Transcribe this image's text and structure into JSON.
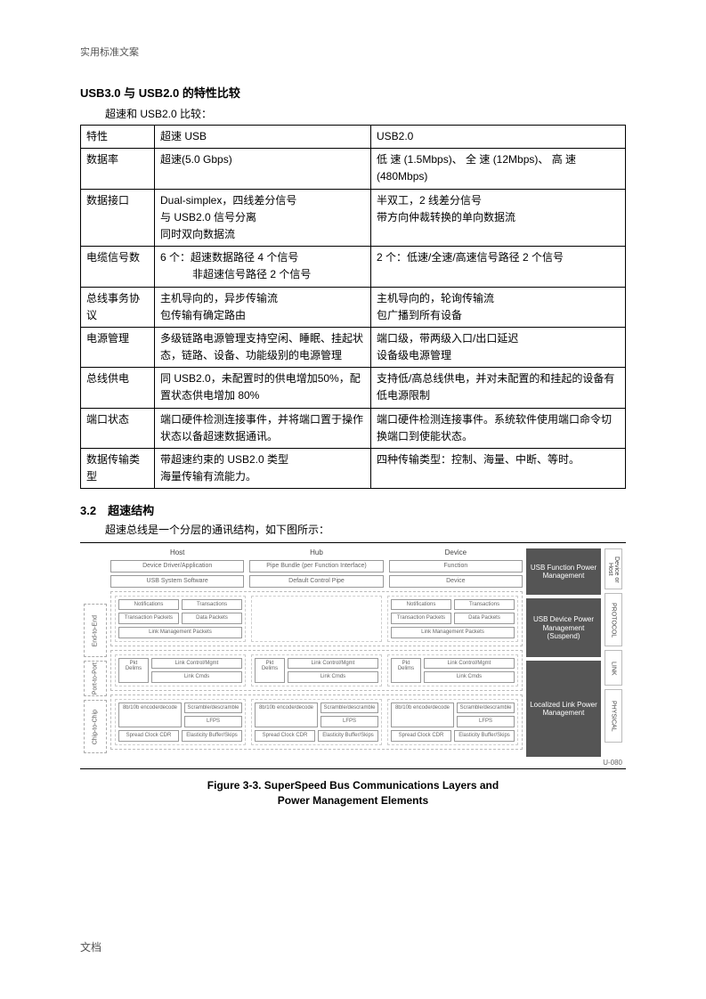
{
  "header": "实用标准文案",
  "title": "USB3.0 与 USB2.0 的特性比较",
  "subtitle": "超速和 USB2.0 比较：",
  "table": {
    "columns": [
      "特性",
      "超速 USB",
      "USB2.0"
    ],
    "rows": [
      [
        "数据率",
        "超速(5.0 Gbps)",
        "低 速 (1.5Mbps)、 全 速 (12Mbps)、 高 速(480Mbps)"
      ],
      [
        "数据接口",
        "Dual-simplex，四线差分信号\n与 USB2.0 信号分离\n同时双向数据流",
        "半双工，2 线差分信号\n带方向仲裁转换的单向数据流"
      ],
      [
        "电缆信号数",
        "6 个：超速数据路径 4 个信号\n　　　非超速信号路径 2 个信号",
        "2 个：低速/全速/高速信号路径 2 个信号"
      ],
      [
        "总线事务协议",
        "主机导向的，异步传输流\n包传输有确定路由",
        "主机导向的，轮询传输流\n包广播到所有设备"
      ],
      [
        "电源管理",
        "多级链路电源管理支持空闲、睡眠、挂起状态，链路、设备、功能级别的电源管理",
        "端口级，带两级入口/出口延迟\n设备级电源管理"
      ],
      [
        "总线供电",
        "同 USB2.0，未配置时的供电增加50%，配置状态供电增加 80%",
        "支持低/高总线供电，并对未配置的和挂起的设备有低电源限制"
      ],
      [
        "端口状态",
        "端口硬件检测连接事件，并将端口置于操作状态以备超速数据通讯。",
        "端口硬件检测连接事件。系统软件使用端口命令切换端口到使能状态。"
      ],
      [
        "数据传输类型",
        "带超速约束的 USB2.0 类型\n海量传输有流能力。",
        "四种传输类型：控制、海量、中断、等时。"
      ]
    ]
  },
  "section2": {
    "num": "3.2",
    "title": "超速结构",
    "desc": "超速总线是一个分层的通讯结构，如下图所示："
  },
  "diagram": {
    "top_cols": [
      "Host",
      "Hub",
      "Device"
    ],
    "left_labels": [
      "End-to-End",
      "Port-to-Port",
      "Chip-to-Chip"
    ],
    "row1": {
      "host": [
        "Device Driver/Application",
        "USB System Software"
      ],
      "hub": [
        "Pipe Bundle (per Function Interface)",
        "Default Control Pipe"
      ],
      "dev": [
        "Function",
        "Device"
      ]
    },
    "proto": {
      "a": [
        "Notifications",
        "Transactions"
      ],
      "b": [
        "Transaction Packets",
        "Data Packets"
      ],
      "c": "Link Management Packets"
    },
    "link": {
      "pkt": "Pkt Delims",
      "a": "Link Control/Mgmt",
      "b": "Link Cmds"
    },
    "phy": {
      "a": "8b/10b encode/decode",
      "b": "Scramble/descramble",
      "c": "LFPS",
      "d": "Spread Clock CDR",
      "e": "Elasticity Buffer/Skips"
    },
    "right": [
      "USB Function Power Management",
      "USB Device Power Management (Suspend)",
      "Localized Link Power Management"
    ],
    "vlabels": [
      "Device or Host",
      "PROTOCOL",
      "LINK",
      "PHYSICAL"
    ],
    "code": "U-080"
  },
  "figure_caption_1": "Figure 3-3.  SuperSpeed Bus Communications Layers and",
  "figure_caption_2": "Power Management Elements",
  "footer": "文档"
}
